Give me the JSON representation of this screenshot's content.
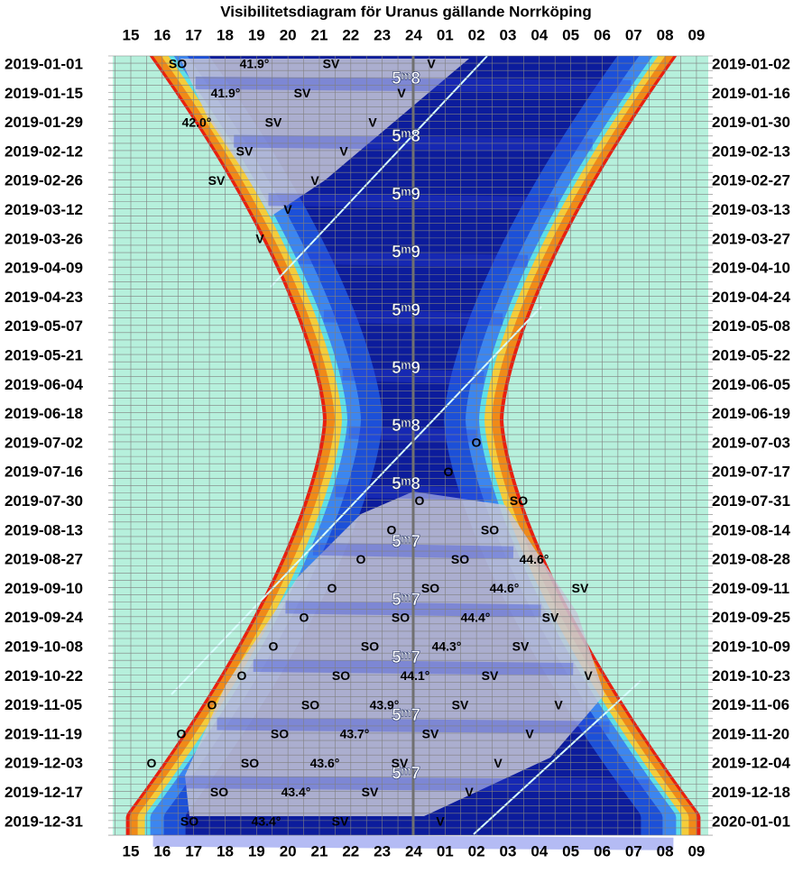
{
  "title": "Visibilitetsdiagram för Uranus gällande Norrköping",
  "hours": [
    "15",
    "16",
    "17",
    "18",
    "19",
    "20",
    "21",
    "22",
    "23",
    "24",
    "01",
    "02",
    "03",
    "04",
    "05",
    "06",
    "07",
    "08",
    "09"
  ],
  "left_dates": [
    "2019-01-01",
    "2019-01-15",
    "2019-01-29",
    "2019-02-12",
    "2019-02-26",
    "2019-03-12",
    "2019-03-26",
    "2019-04-09",
    "2019-04-23",
    "2019-05-07",
    "2019-05-21",
    "2019-06-04",
    "2019-06-18",
    "2019-07-02",
    "2019-07-16",
    "2019-07-30",
    "2019-08-13",
    "2019-08-27",
    "2019-09-10",
    "2019-09-24",
    "2019-10-08",
    "2019-10-22",
    "2019-11-05",
    "2019-11-19",
    "2019-12-03",
    "2019-12-17",
    "2019-12-31"
  ],
  "right_dates": [
    "2019-01-02",
    "2019-01-16",
    "2019-01-30",
    "2019-02-13",
    "2019-02-27",
    "2019-03-13",
    "2019-03-27",
    "2019-04-10",
    "2019-04-24",
    "2019-05-08",
    "2019-05-22",
    "2019-06-05",
    "2019-06-19",
    "2019-07-03",
    "2019-07-17",
    "2019-07-31",
    "2019-08-14",
    "2019-08-28",
    "2019-09-11",
    "2019-09-25",
    "2019-10-09",
    "2019-10-23",
    "2019-11-06",
    "2019-11-20",
    "2019-12-04",
    "2019-12-18",
    "2020-01-01"
  ],
  "magnitudes": [
    "5ᵐ8",
    "5ᵐ8",
    "5ᵐ9",
    "5ᵐ9",
    "5ᵐ9",
    "5ᵐ9",
    "5ᵐ8",
    "5ᵐ8",
    "5ᵐ7",
    "5ᵐ7",
    "5ᵐ7",
    "5ᵐ7",
    "5ᵐ7"
  ],
  "annotations": [
    [
      "SO",
      "41.9°",
      "SV",
      "V"
    ],
    [
      "41.9°",
      "SV",
      "V"
    ],
    [
      "42.0°",
      "SV",
      "V"
    ],
    [
      "SV",
      "V"
    ],
    [
      "SV",
      "V"
    ],
    [
      "V"
    ],
    [
      "V"
    ],
    [],
    [],
    [],
    [],
    [],
    [],
    [
      "O"
    ],
    [
      "O"
    ],
    [
      "O",
      "SO"
    ],
    [
      "O",
      "SO"
    ],
    [
      "O",
      "SO",
      "44.6°"
    ],
    [
      "O",
      "SO",
      "44.6°",
      "SV"
    ],
    [
      "O",
      "SO",
      "44.4°",
      "SV"
    ],
    [
      "O",
      "SO",
      "44.3°",
      "SV"
    ],
    [
      "O",
      "SO",
      "44.1°",
      "SV",
      "V"
    ],
    [
      "O",
      "SO",
      "43.9°",
      "SV",
      "V"
    ],
    [
      "O",
      "SO",
      "43.7°",
      "SV",
      "V"
    ],
    [
      "O",
      "SO",
      "43.6°",
      "SV",
      "V"
    ],
    [
      "SO",
      "43.4°",
      "SV",
      "V"
    ],
    [
      "SO",
      "43.4°",
      "SV",
      "V"
    ]
  ]
}
